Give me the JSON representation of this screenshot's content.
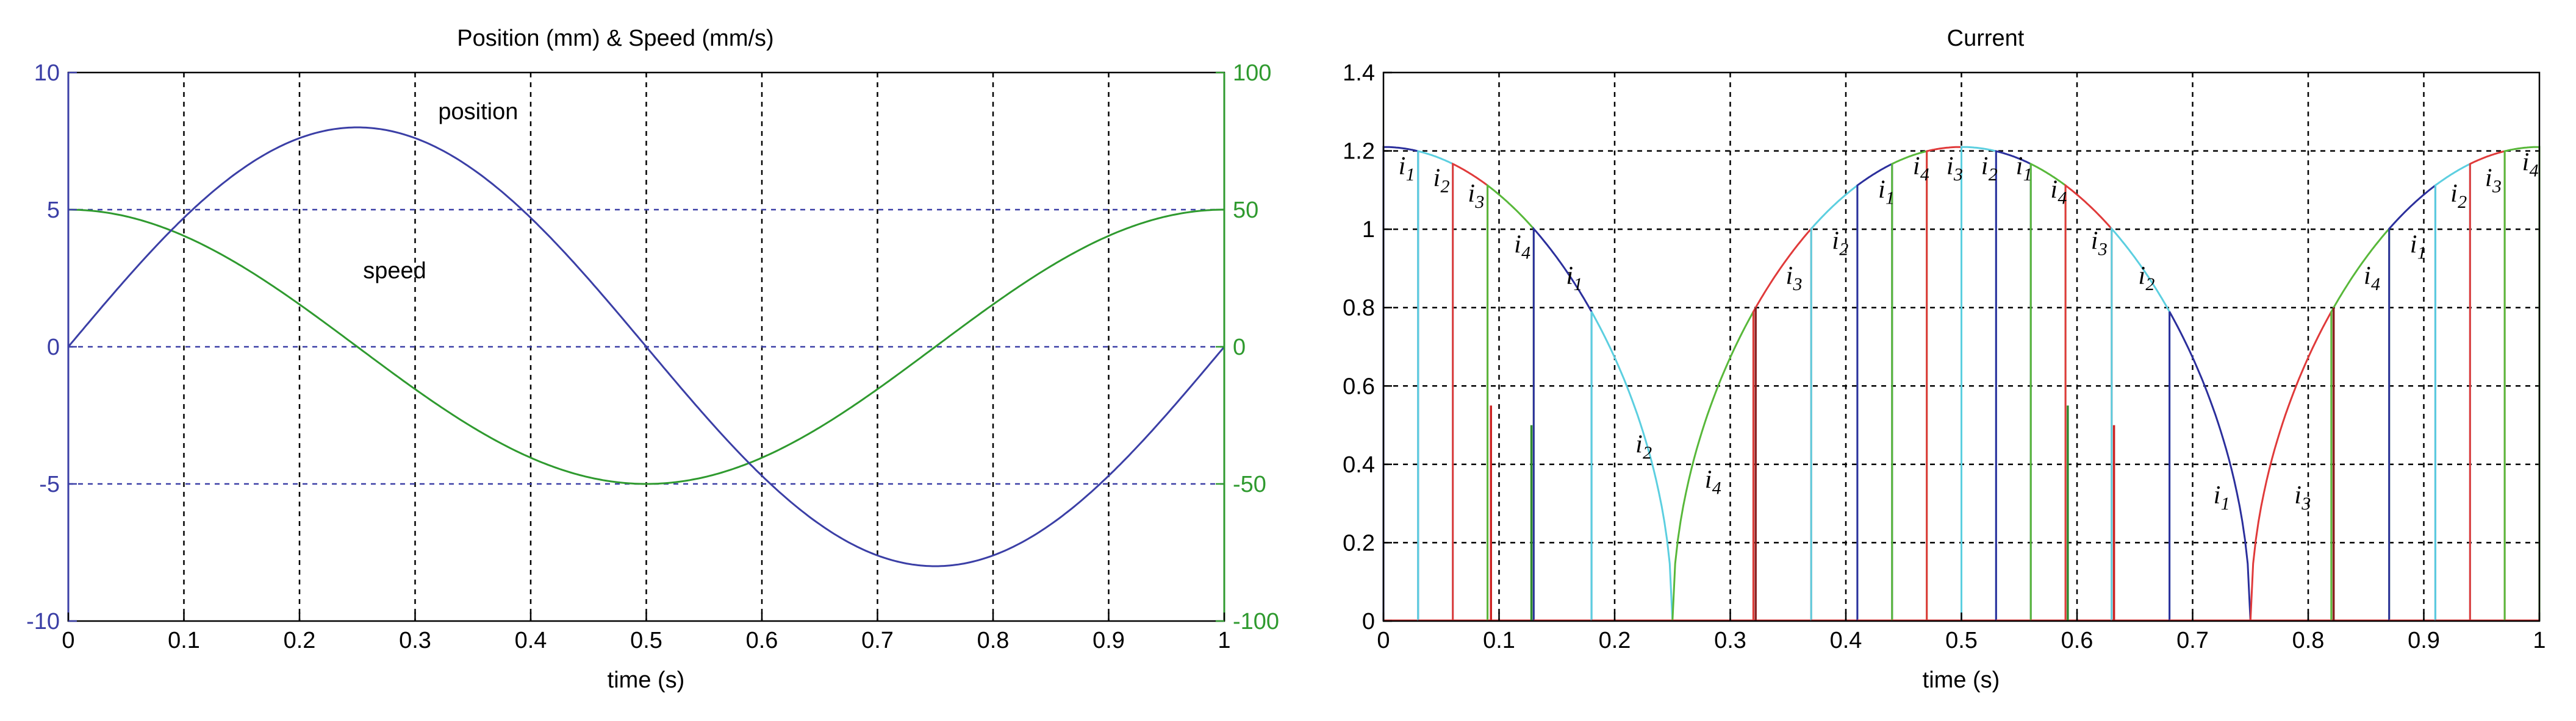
{
  "chart_data": [
    {
      "type": "line",
      "title": "Position (mm) & Speed (mm/s)",
      "xlabel": "time (s)",
      "xlim": [
        0,
        1
      ],
      "x_ticks": [
        "0",
        "0.1",
        "0.2",
        "0.3",
        "0.4",
        "0.5",
        "0.6",
        "0.7",
        "0.8",
        "0.9",
        "1"
      ],
      "ylim_left": [
        -10,
        10
      ],
      "y_ticks_left": [
        "10",
        "5",
        "0",
        "-5",
        "-10"
      ],
      "ylim_right": [
        -100,
        100
      ],
      "y_ticks_right": [
        "100",
        "50",
        "0",
        "-50",
        "-100"
      ],
      "grid": true,
      "series": [
        {
          "name": "position",
          "axis": "left",
          "color": "#3b3fa6",
          "function": "8*sin(2*pi*t)",
          "amplitude": 8
        },
        {
          "name": "speed",
          "axis": "right",
          "color": "#2f9a2f",
          "function": "50*cos(2*pi*t)",
          "amplitude": 50
        }
      ],
      "reference_lines": [
        5,
        0,
        -5
      ],
      "annotations": [
        {
          "text": "position",
          "x": 0.32,
          "y": 8.3
        },
        {
          "text": "speed",
          "x": 0.255,
          "y": 2.5
        }
      ],
      "colors": {
        "left_axis": "#3b3fa6",
        "right_axis": "#2f9a2f",
        "reference": "#3b3fa6"
      }
    },
    {
      "type": "line",
      "title": "Current",
      "xlabel": "time (s)",
      "xlim": [
        0,
        1
      ],
      "x_ticks": [
        "0",
        "0.1",
        "0.2",
        "0.3",
        "0.4",
        "0.5",
        "0.6",
        "0.7",
        "0.8",
        "0.9",
        "1"
      ],
      "ylim": [
        0,
        1.4
      ],
      "y_ticks": [
        "0",
        "0.2",
        "0.4",
        "0.6",
        "0.8",
        "1",
        "1.2",
        "1.4"
      ],
      "grid": true,
      "envelope": "1.21*|cos(2*pi*t)|^0.5",
      "amplitude": 1.21,
      "segments": [
        {
          "phase": "i1",
          "start": 0.0,
          "end": 0.03
        },
        {
          "phase": "i2",
          "start": 0.03,
          "end": 0.06
        },
        {
          "phase": "i3",
          "start": 0.06,
          "end": 0.09
        },
        {
          "phase": "i4",
          "start": 0.09,
          "end": 0.13
        },
        {
          "phase": "i1",
          "start": 0.13,
          "end": 0.18
        },
        {
          "phase": "i2",
          "start": 0.18,
          "end": 0.25
        },
        {
          "phase": "i4",
          "start": 0.25,
          "end": 0.32
        },
        {
          "phase": "i3",
          "start": 0.32,
          "end": 0.37
        },
        {
          "phase": "i2",
          "start": 0.37,
          "end": 0.41
        },
        {
          "phase": "i1",
          "start": 0.41,
          "end": 0.44
        },
        {
          "phase": "i4",
          "start": 0.44,
          "end": 0.47
        },
        {
          "phase": "i3",
          "start": 0.47,
          "end": 0.5
        },
        {
          "phase": "i2",
          "start": 0.5,
          "end": 0.53
        },
        {
          "phase": "i1",
          "start": 0.53,
          "end": 0.56
        },
        {
          "phase": "i4",
          "start": 0.56,
          "end": 0.59
        },
        {
          "phase": "i3",
          "start": 0.59,
          "end": 0.63
        },
        {
          "phase": "i2",
          "start": 0.63,
          "end": 0.68
        },
        {
          "phase": "i1",
          "start": 0.68,
          "end": 0.75
        },
        {
          "phase": "i3",
          "start": 0.75,
          "end": 0.82
        },
        {
          "phase": "i4",
          "start": 0.82,
          "end": 0.87
        },
        {
          "phase": "i1",
          "start": 0.87,
          "end": 0.91
        },
        {
          "phase": "i2",
          "start": 0.91,
          "end": 0.94
        },
        {
          "phase": "i3",
          "start": 0.94,
          "end": 0.97
        },
        {
          "phase": "i4",
          "start": 0.97,
          "end": 1.0
        }
      ],
      "spikes": [
        {
          "x": 0.093,
          "y": 0.55,
          "color": "#cc2222"
        },
        {
          "x": 0.128,
          "y": 0.5,
          "color": "#2f8a2f"
        },
        {
          "x": 0.322,
          "y": 0.8,
          "color": "#8a2020"
        },
        {
          "x": 0.592,
          "y": 0.55,
          "color": "#2f8a2f"
        },
        {
          "x": 0.632,
          "y": 0.5,
          "color": "#cc2222"
        },
        {
          "x": 0.822,
          "y": 0.8,
          "color": "#8a2020"
        }
      ],
      "labels": [
        {
          "n": "1",
          "x": 0.013,
          "y": 1.14
        },
        {
          "n": "2",
          "x": 0.043,
          "y": 1.11
        },
        {
          "n": "3",
          "x": 0.073,
          "y": 1.07
        },
        {
          "n": "4",
          "x": 0.113,
          "y": 0.94
        },
        {
          "n": "1",
          "x": 0.158,
          "y": 0.86
        },
        {
          "n": "2",
          "x": 0.218,
          "y": 0.43
        },
        {
          "n": "4",
          "x": 0.278,
          "y": 0.34
        },
        {
          "n": "3",
          "x": 0.348,
          "y": 0.86
        },
        {
          "n": "2",
          "x": 0.388,
          "y": 0.95
        },
        {
          "n": "1",
          "x": 0.428,
          "y": 1.08
        },
        {
          "n": "4",
          "x": 0.458,
          "y": 1.14
        },
        {
          "n": "3",
          "x": 0.487,
          "y": 1.14
        },
        {
          "n": "2",
          "x": 0.517,
          "y": 1.14
        },
        {
          "n": "1",
          "x": 0.547,
          "y": 1.14
        },
        {
          "n": "4",
          "x": 0.577,
          "y": 1.08
        },
        {
          "n": "3",
          "x": 0.612,
          "y": 0.95
        },
        {
          "n": "2",
          "x": 0.653,
          "y": 0.86
        },
        {
          "n": "1",
          "x": 0.718,
          "y": 0.3
        },
        {
          "n": "3",
          "x": 0.788,
          "y": 0.3
        },
        {
          "n": "4",
          "x": 0.848,
          "y": 0.86
        },
        {
          "n": "1",
          "x": 0.888,
          "y": 0.94
        },
        {
          "n": "2",
          "x": 0.923,
          "y": 1.07
        },
        {
          "n": "3",
          "x": 0.953,
          "y": 1.11
        },
        {
          "n": "4",
          "x": 0.985,
          "y": 1.15
        }
      ],
      "phase_colors": {
        "i1": "#2b2f9c",
        "i2": "#5ccfe0",
        "i3": "#e03a3a",
        "i4": "#58b83a"
      },
      "baseline_color": "#e03a3a"
    }
  ]
}
